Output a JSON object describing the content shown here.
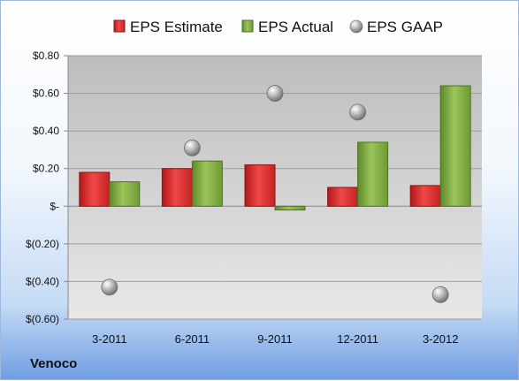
{
  "company": "Venoco",
  "chart_data": {
    "type": "bar",
    "categories": [
      "3-2011",
      "6-2011",
      "9-2011",
      "12-2011",
      "3-2012"
    ],
    "series": [
      {
        "name": "EPS Estimate",
        "kind": "bar",
        "color": "#d42a2f",
        "values": [
          0.18,
          0.2,
          0.22,
          0.1,
          0.11
        ]
      },
      {
        "name": "EPS Actual",
        "kind": "bar",
        "color": "#7faa3f",
        "values": [
          0.13,
          0.24,
          -0.02,
          0.34,
          0.64
        ]
      },
      {
        "name": "EPS GAAP",
        "kind": "marker",
        "color": "#9a9a9a",
        "values": [
          -0.43,
          0.31,
          0.6,
          0.5,
          -0.47
        ]
      }
    ],
    "yticks": [
      0.8,
      0.6,
      0.4,
      0.2,
      0,
      -0.2,
      -0.4,
      -0.6
    ],
    "ytick_labels": [
      "$0.80",
      "$0.60",
      "$0.40",
      "$0.20",
      "$-",
      "$(0.20)",
      "$(0.40)",
      "$(0.60)"
    ],
    "ylim": [
      -0.6,
      0.8
    ],
    "grid": true,
    "legend": "top"
  }
}
